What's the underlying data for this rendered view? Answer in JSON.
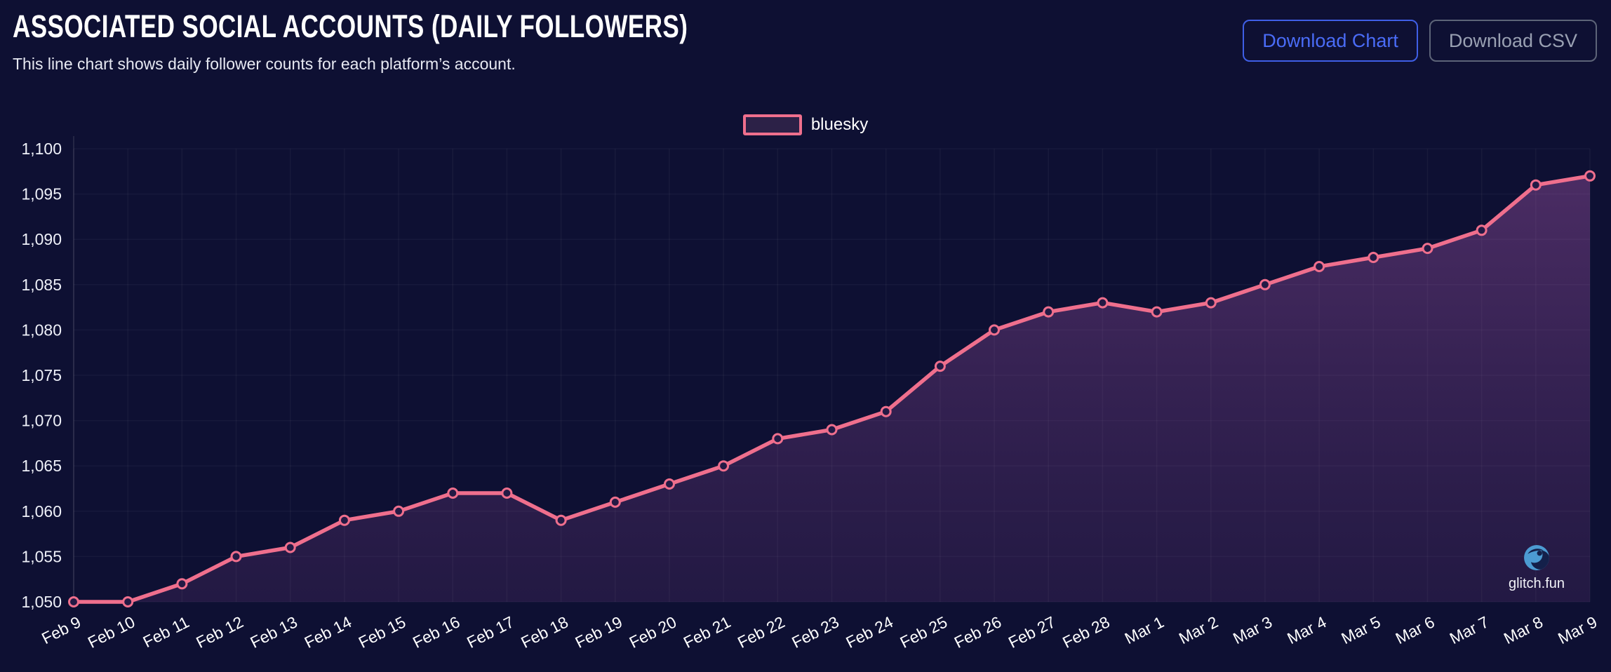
{
  "header": {
    "title": "ASSOCIATED SOCIAL ACCOUNTS (DAILY FOLLOWERS)",
    "subtitle": "This line chart shows daily follower counts for each platform’s account.",
    "buttons": {
      "download_chart": "Download Chart",
      "download_csv": "Download CSV"
    }
  },
  "legend": {
    "items": [
      {
        "label": "bluesky",
        "color": "#ef6f8d"
      }
    ]
  },
  "watermark": {
    "icon": "glitch-fun-globe-icon",
    "label": "glitch.fun"
  },
  "colors": {
    "background": "#0e1033",
    "line": "#ef6f8d",
    "marker_fill": "#231a45",
    "area_top": "rgba(199,102,199,0.33)",
    "area_bottom": "rgba(142,72,152,0.16)",
    "grid_vertical": "rgba(255,255,255,0.045)",
    "grid_horizontal": "rgba(255,255,255,0.04)",
    "axis_line": "rgba(255,255,255,0.12)",
    "tick_label": "#eef0f8",
    "button_primary": "#4a6cf7",
    "button_secondary": "#99a0b2"
  },
  "chart_data": {
    "type": "line",
    "title": "",
    "xlabel": "",
    "ylabel": "",
    "x": [
      "Feb 9",
      "Feb 10",
      "Feb 11",
      "Feb 12",
      "Feb 13",
      "Feb 14",
      "Feb 15",
      "Feb 16",
      "Feb 17",
      "Feb 18",
      "Feb 19",
      "Feb 20",
      "Feb 21",
      "Feb 22",
      "Feb 23",
      "Feb 24",
      "Feb 25",
      "Feb 26",
      "Feb 27",
      "Feb 28",
      "Mar 1",
      "Mar 2",
      "Mar 3",
      "Mar 4",
      "Mar 5",
      "Mar 6",
      "Mar 7",
      "Mar 8",
      "Mar 9"
    ],
    "series": [
      {
        "name": "bluesky",
        "color": "#ef6f8d",
        "values": [
          1050,
          1050,
          1052,
          1055,
          1056,
          1059,
          1060,
          1062,
          1062,
          1059,
          1061,
          1063,
          1065,
          1068,
          1069,
          1071,
          1076,
          1080,
          1082,
          1083,
          1082,
          1083,
          1085,
          1087,
          1088,
          1089,
          1091,
          1096,
          1097
        ]
      }
    ],
    "ylim": [
      1050,
      1100
    ],
    "y_ticks": [
      1050,
      1055,
      1060,
      1065,
      1070,
      1075,
      1080,
      1085,
      1090,
      1095,
      1100
    ],
    "y_tick_labels": [
      "1,050",
      "1,055",
      "1,060",
      "1,065",
      "1,070",
      "1,075",
      "1,080",
      "1,085",
      "1,090",
      "1,095",
      "1,100"
    ],
    "grid": true,
    "legend_position": "top-center",
    "area_fill": true,
    "markers": "hollow-circle",
    "x_label_rotation": -27
  }
}
